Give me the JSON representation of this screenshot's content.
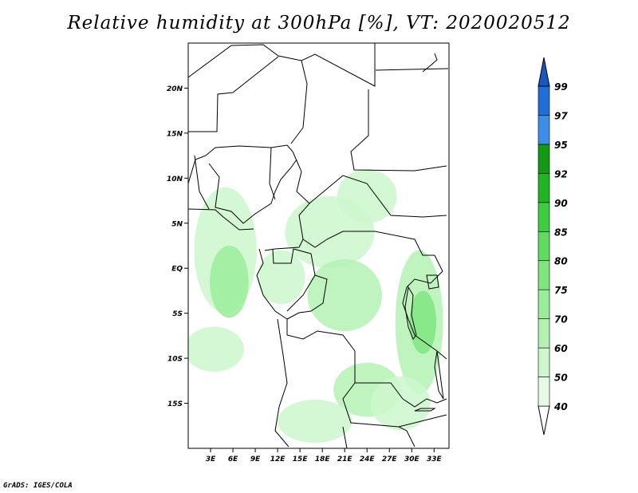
{
  "title": "Relative humidity at 300hPa [%], VT: 2020020512",
  "credit": "GrADS: IGES/COLA",
  "map": {
    "lon_range": [
      0,
      35
    ],
    "lat_range": [
      -20,
      25
    ],
    "lat_ticks": [
      {
        "value": 20,
        "label": "20N"
      },
      {
        "value": 15,
        "label": "15N"
      },
      {
        "value": 10,
        "label": "10N"
      },
      {
        "value": 5,
        "label": "5N"
      },
      {
        "value": 0,
        "label": "EQ"
      },
      {
        "value": -5,
        "label": "5S"
      },
      {
        "value": -10,
        "label": "10S"
      },
      {
        "value": -15,
        "label": "15S"
      }
    ],
    "lon_ticks": [
      {
        "value": 3,
        "label": "3E"
      },
      {
        "value": 6,
        "label": "6E"
      },
      {
        "value": 9,
        "label": "9E"
      },
      {
        "value": 12,
        "label": "12E"
      },
      {
        "value": 15,
        "label": "15E"
      },
      {
        "value": 18,
        "label": "18E"
      },
      {
        "value": 21,
        "label": "21E"
      },
      {
        "value": 24,
        "label": "24E"
      },
      {
        "value": 27,
        "label": "27E"
      },
      {
        "value": 30,
        "label": "30E"
      },
      {
        "value": 33,
        "label": "33E"
      }
    ]
  },
  "colorbar": {
    "levels": [
      {
        "label": "40",
        "color": "#e6fbe6"
      },
      {
        "label": "50",
        "color": "#cdf7cd"
      },
      {
        "label": "60",
        "color": "#b4f2b4"
      },
      {
        "label": "70",
        "color": "#9aed9a"
      },
      {
        "label": "75",
        "color": "#7fe57f"
      },
      {
        "label": "80",
        "color": "#5fdc5f"
      },
      {
        "label": "85",
        "color": "#3fcd3f"
      },
      {
        "label": "90",
        "color": "#22b522"
      },
      {
        "label": "92",
        "color": "#129b12"
      },
      {
        "label": "95",
        "color": "#3c8ee8"
      },
      {
        "label": "97",
        "color": "#1f6fd6"
      },
      {
        "label": "99",
        "color": "#1558c0"
      }
    ],
    "below_color": "#ffffff"
  },
  "humidity_field": [
    {
      "lon": 5,
      "lat": 2,
      "rx": 4.2,
      "ry": 7,
      "level": 1
    },
    {
      "lon": 5.5,
      "lat": -1.5,
      "rx": 2.6,
      "ry": 4,
      "level": 3
    },
    {
      "lon": 3.5,
      "lat": -9,
      "rx": 4,
      "ry": 2.5,
      "level": 1
    },
    {
      "lon": 12.5,
      "lat": -1,
      "rx": 3.2,
      "ry": 3,
      "level": 1
    },
    {
      "lon": 19,
      "lat": 4,
      "rx": 6,
      "ry": 4,
      "level": 1
    },
    {
      "lon": 21,
      "lat": -3,
      "rx": 5,
      "ry": 4,
      "level": 2
    },
    {
      "lon": 24,
      "lat": 8,
      "rx": 4,
      "ry": 3,
      "level": 1
    },
    {
      "lon": 31,
      "lat": -6,
      "rx": 3.2,
      "ry": 8,
      "level": 2
    },
    {
      "lon": 31.5,
      "lat": -6,
      "rx": 1.8,
      "ry": 3.5,
      "level": 4
    },
    {
      "lon": 24,
      "lat": -13.5,
      "rx": 4.5,
      "ry": 3,
      "level": 2
    },
    {
      "lon": 17,
      "lat": -17,
      "rx": 5,
      "ry": 2.4,
      "level": 1
    },
    {
      "lon": 28.5,
      "lat": -15,
      "rx": 4,
      "ry": 3,
      "level": 1
    }
  ]
}
